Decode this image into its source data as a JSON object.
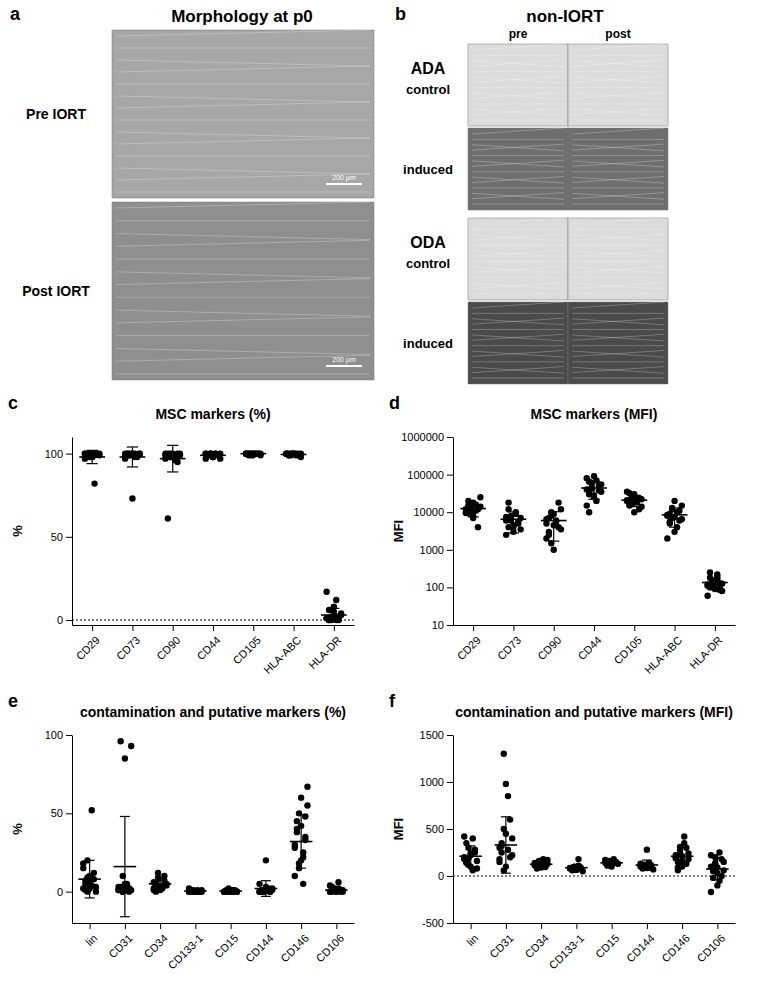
{
  "panels": {
    "a": {
      "label": "a",
      "title": "Morphology at p0",
      "rows": [
        "Pre IORT",
        "Post IORT"
      ],
      "scale_bars": [
        "200 µm",
        "200 µm"
      ]
    },
    "b": {
      "label": "b",
      "title": "non-IORT",
      "columns": [
        "pre",
        "post"
      ],
      "groups": [
        {
          "name": "ADA",
          "rows": [
            "control",
            "induced"
          ]
        },
        {
          "name": "ODA",
          "rows": [
            "control",
            "induced"
          ]
        }
      ]
    }
  },
  "chart_data": [
    {
      "panel": "c",
      "type": "scatter",
      "title": "MSC markers (%)",
      "y_label": "%",
      "color": "#000000",
      "marker": "circle",
      "categories": [
        "CD29",
        "CD73",
        "CD90",
        "CD44",
        "CD105",
        "HLA-ABC",
        "HLA-DR"
      ],
      "points": [
        [
          100,
          99,
          100,
          98,
          99,
          100,
          100,
          97,
          99,
          100,
          98,
          82,
          100,
          99,
          100,
          99,
          98,
          100
        ],
        [
          100,
          99,
          100,
          100,
          98,
          99,
          100,
          97,
          100,
          99,
          73,
          100,
          98,
          100,
          99,
          100,
          99,
          100
        ],
        [
          100,
          99,
          98,
          100,
          97,
          95,
          100,
          99,
          61,
          100,
          98,
          96,
          100,
          99,
          97,
          100,
          98,
          99
        ],
        [
          100,
          99,
          100,
          98,
          100,
          99,
          97,
          100,
          99,
          100,
          98,
          100,
          99,
          100,
          97,
          99,
          100,
          98
        ],
        [
          100,
          100,
          99,
          100,
          100,
          100,
          99,
          100,
          100,
          100,
          99,
          100,
          100,
          100,
          100,
          99,
          100,
          100
        ],
        [
          100,
          99,
          100,
          100,
          99,
          100,
          98,
          100,
          100,
          99,
          100,
          100,
          99,
          100,
          100,
          99,
          100,
          100
        ],
        [
          1,
          0,
          2,
          5,
          0,
          1,
          3,
          17,
          0,
          1,
          8,
          2,
          0,
          4,
          1,
          6,
          0,
          2,
          12,
          1
        ]
      ],
      "mean": [
        98,
        98,
        97,
        99,
        100,
        99.5,
        3
      ],
      "sd": [
        4,
        6,
        8,
        1,
        0.4,
        0.5,
        4
      ],
      "ylim": [
        -3,
        110
      ],
      "yticks": [
        0,
        50,
        100
      ],
      "reference_line": 0
    },
    {
      "panel": "d",
      "type": "scatter",
      "title": "MSC markers (MFI)",
      "y_label": "MFI",
      "color": "#000000",
      "marker": "circle",
      "log": "y",
      "categories": [
        "CD29",
        "CD73",
        "CD90",
        "CD44",
        "CD105",
        "HLA-ABC",
        "HLA-DR"
      ],
      "points": [
        [
          12000,
          15000,
          9000,
          18000,
          11000,
          4000,
          14000,
          10000,
          20000,
          13000,
          8000,
          16000,
          12000,
          25000,
          9500,
          11000,
          13500,
          7000
        ],
        [
          6000,
          4000,
          8000,
          3000,
          10000,
          5500,
          7000,
          2500,
          18000,
          6500,
          4500,
          9000,
          5000,
          3500,
          7500,
          12000,
          6000,
          4000
        ],
        [
          5000,
          3000,
          8000,
          1000,
          6000,
          4000,
          12000,
          2000,
          7000,
          1500,
          9000,
          5500,
          18000,
          3500,
          6500,
          2500,
          10000,
          4500
        ],
        [
          40000,
          30000,
          60000,
          90000,
          20000,
          50000,
          35000,
          80000,
          10000,
          45000,
          25000,
          70000,
          38000,
          55000,
          15000,
          65000,
          42000,
          28000
        ],
        [
          20000,
          15000,
          25000,
          30000,
          18000,
          12000,
          22000,
          35000,
          16000,
          28000,
          10000,
          19000,
          24000,
          14000,
          21000,
          32000,
          17000,
          26000
        ],
        [
          8000,
          5000,
          12000,
          3000,
          10000,
          6000,
          15000,
          2000,
          9000,
          7000,
          20000,
          4000,
          11000,
          6500,
          8500,
          5500,
          13000,
          7500
        ],
        [
          120,
          100,
          150,
          90,
          200,
          130,
          80,
          110,
          250,
          140,
          95,
          170,
          105,
          125,
          60,
          180,
          115,
          135,
          220,
          85
        ]
      ],
      "mean": [
        12500,
        6500,
        6000,
        44000,
        21000,
        8500,
        135
      ],
      "sd": [
        5000,
        3700,
        4300,
        22000,
        7000,
        4500,
        45
      ],
      "ylim": [
        10,
        1000000
      ],
      "yticks": [
        10,
        100,
        1000,
        10000,
        100000,
        1000000
      ]
    },
    {
      "panel": "e",
      "type": "scatter",
      "title": "contamination and putative markers (%)",
      "y_label": "%",
      "color": "#000000",
      "marker": "circle",
      "categories": [
        "lin",
        "CD31",
        "CD34",
        "CD133-1",
        "CD15",
        "CD144",
        "CD146",
        "CD106"
      ],
      "points": [
        [
          2,
          5,
          0,
          10,
          52,
          8,
          3,
          15,
          1,
          20,
          6,
          4,
          12,
          0,
          18,
          7,
          9,
          2
        ],
        [
          1,
          3,
          0,
          85,
          5,
          2,
          93,
          1,
          96,
          10,
          4,
          2,
          0,
          1,
          3,
          2,
          0,
          5,
          1,
          2
        ],
        [
          2,
          5,
          8,
          1,
          3,
          10,
          4,
          6,
          0,
          12,
          3,
          2,
          7,
          5,
          1,
          4,
          9,
          3
        ],
        [
          0,
          1,
          0,
          0,
          1,
          0,
          0,
          2,
          0,
          1,
          0,
          0,
          0,
          1,
          0,
          0
        ],
        [
          0,
          0,
          1,
          0,
          0,
          1,
          0,
          0,
          0,
          2,
          0,
          1,
          0,
          0,
          0,
          1
        ],
        [
          0,
          1,
          0,
          20,
          2,
          0,
          1,
          5,
          0,
          0,
          3,
          1,
          0,
          2,
          0,
          1
        ],
        [
          30,
          45,
          15,
          60,
          25,
          35,
          67,
          10,
          40,
          50,
          20,
          5,
          33,
          55,
          28,
          38,
          18,
          42,
          22,
          48
        ],
        [
          0,
          1,
          2,
          0,
          6,
          1,
          0,
          0,
          3,
          1,
          0,
          2,
          0,
          1,
          4,
          0
        ]
      ],
      "mean": [
        8,
        16,
        5,
        0.4,
        0.4,
        2,
        32,
        1
      ],
      "sd": [
        12,
        32,
        3.5,
        0.6,
        0.6,
        5,
        17,
        2
      ],
      "ylim": [
        -20,
        100
      ],
      "yticks": [
        0,
        50,
        100
      ]
    },
    {
      "panel": "f",
      "type": "scatter",
      "title": "contamination and putative markers (MFI)",
      "y_label": "MFI",
      "color": "#000000",
      "marker": "circle",
      "categories": [
        "lin",
        "CD31",
        "CD34",
        "CD133-1",
        "CD15",
        "CD144",
        "CD146",
        "CD106"
      ],
      "points": [
        [
          200,
          150,
          300,
          100,
          400,
          250,
          80,
          180,
          350,
          120,
          220,
          60,
          280,
          160,
          420,
          140,
          190,
          240
        ],
        [
          300,
          250,
          1300,
          980,
          850,
          200,
          400,
          150,
          350,
          500,
          100,
          280,
          600,
          220,
          180,
          320,
          60,
          450
        ],
        [
          120,
          100,
          150,
          90,
          180,
          110,
          130,
          140,
          80,
          160,
          105,
          125,
          95,
          170,
          115
        ],
        [
          80,
          60,
          100,
          70,
          180,
          90,
          50,
          85,
          75,
          95,
          65,
          110
        ],
        [
          140,
          120,
          160,
          100,
          180,
          150,
          130,
          170,
          110,
          145,
          125,
          155
        ],
        [
          100,
          80,
          120,
          280,
          90,
          110,
          70,
          130,
          95,
          105,
          85,
          140,
          115
        ],
        [
          200,
          150,
          250,
          100,
          420,
          300,
          180,
          220,
          90,
          280,
          160,
          350,
          130,
          240,
          190,
          60,
          310,
          210
        ],
        [
          100,
          50,
          200,
          -100,
          250,
          0,
          150,
          -170,
          80,
          120,
          30,
          -50,
          180,
          60,
          220,
          -20,
          140,
          90
        ]
      ],
      "mean": [
        210,
        330,
        125,
        88,
        140,
        117,
        210,
        74
      ],
      "sd": [
        110,
        300,
        30,
        32,
        22,
        52,
        95,
        115
      ],
      "ylim": [
        -500,
        1500
      ],
      "yticks": [
        -500,
        0,
        500,
        1000,
        1500
      ],
      "reference_line": 0
    }
  ]
}
